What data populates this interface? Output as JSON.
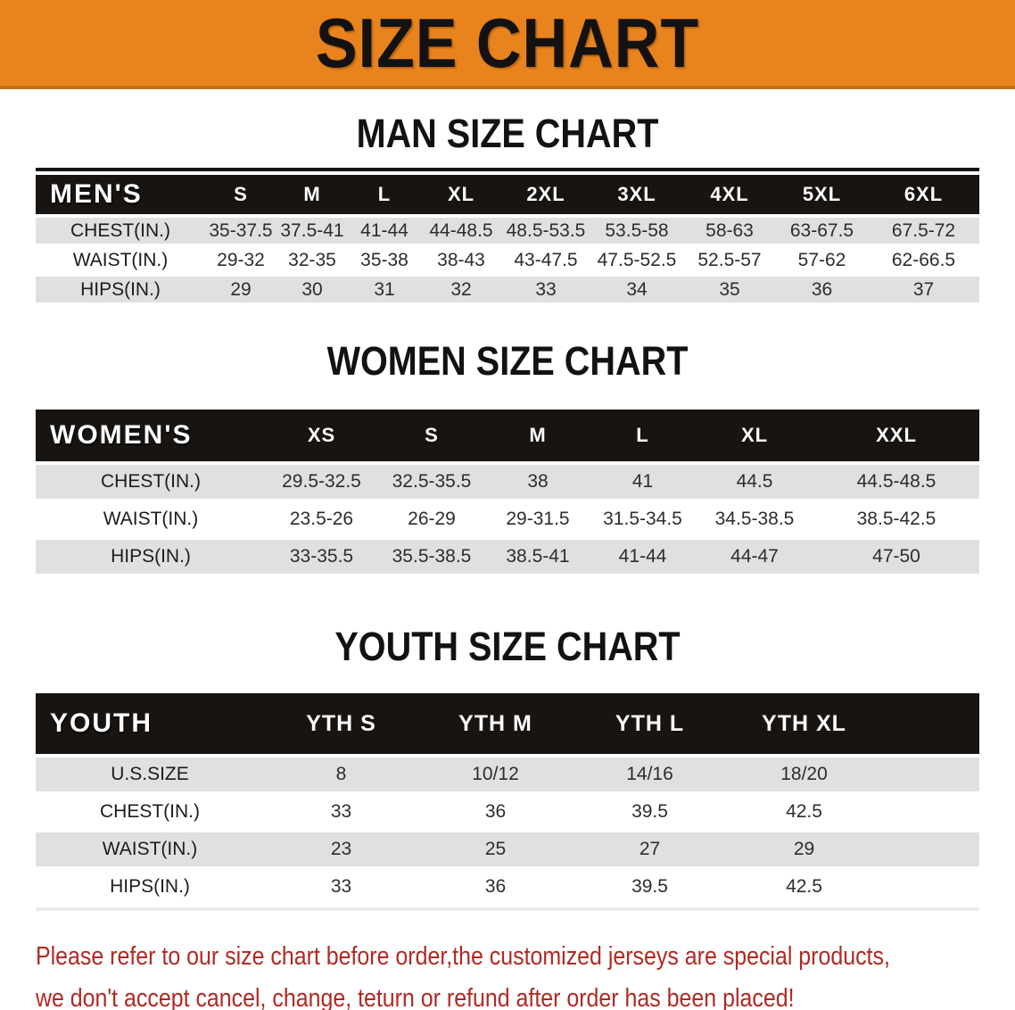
{
  "banner": {
    "title": "SIZE CHART"
  },
  "sections": [
    {
      "id": "men",
      "title": "MAN SIZE CHART",
      "header_label": "MEN'S",
      "columns": [
        "S",
        "M",
        "L",
        "XL",
        "2XL",
        "3XL",
        "4XL",
        "5XL",
        "6XL"
      ],
      "rows": [
        {
          "label": "CHEST(IN.)",
          "values": [
            "35-37.5",
            "37.5-41",
            "41-44",
            "44-48.5",
            "48.5-53.5",
            "53.5-58",
            "58-63",
            "63-67.5",
            "67.5-72"
          ]
        },
        {
          "label": "WAIST(IN.)",
          "values": [
            "29-32",
            "32-35",
            "35-38",
            "38-43",
            "43-47.5",
            "47.5-52.5",
            "52.5-57",
            "57-62",
            "62-66.5"
          ]
        },
        {
          "label": "HIPS(IN.)",
          "values": [
            "29",
            "30",
            "31",
            "32",
            "33",
            "34",
            "35",
            "36",
            "37"
          ]
        }
      ]
    },
    {
      "id": "women",
      "title": "WOMEN SIZE CHART",
      "header_label": "WOMEN'S",
      "columns": [
        "XS",
        "S",
        "M",
        "L",
        "XL",
        "XXL"
      ],
      "rows": [
        {
          "label": "CHEST(IN.)",
          "values": [
            "29.5-32.5",
            "32.5-35.5",
            "38",
            "41",
            "44.5",
            "44.5-48.5"
          ]
        },
        {
          "label": "WAIST(IN.)",
          "values": [
            "23.5-26",
            "26-29",
            "29-31.5",
            "31.5-34.5",
            "34.5-38.5",
            "38.5-42.5"
          ]
        },
        {
          "label": "HIPS(IN.)",
          "values": [
            "33-35.5",
            "35.5-38.5",
            "38.5-41",
            "41-44",
            "44-47",
            "47-50"
          ]
        }
      ]
    },
    {
      "id": "youth",
      "title": "YOUTH SIZE CHART",
      "header_label": "YOUTH",
      "columns": [
        "YTH S",
        "YTH M",
        "YTH L",
        "YTH XL"
      ],
      "rows": [
        {
          "label": "U.S.SIZE",
          "values": [
            "8",
            "10/12",
            "14/16",
            "18/20"
          ]
        },
        {
          "label": "CHEST(IN.)",
          "values": [
            "33",
            "36",
            "39.5",
            "42.5"
          ]
        },
        {
          "label": "WAIST(IN.)",
          "values": [
            "23",
            "25",
            "27",
            "29"
          ]
        },
        {
          "label": "HIPS(IN.)",
          "values": [
            "33",
            "36",
            "39.5",
            "42.5"
          ]
        }
      ]
    }
  ],
  "disclaimer": {
    "line1": "Please refer to our size chart before order,the customized jerseys are special products,",
    "line2": "we don't accept cancel, change, teturn or refund after order has been placed!"
  },
  "colors": {
    "banner_orange": "#E8831E",
    "banner_edge": "#C96F13",
    "header_black": "#171412",
    "row_gray": "#E0E0E0",
    "disclaimer_red": "#B02A24"
  }
}
